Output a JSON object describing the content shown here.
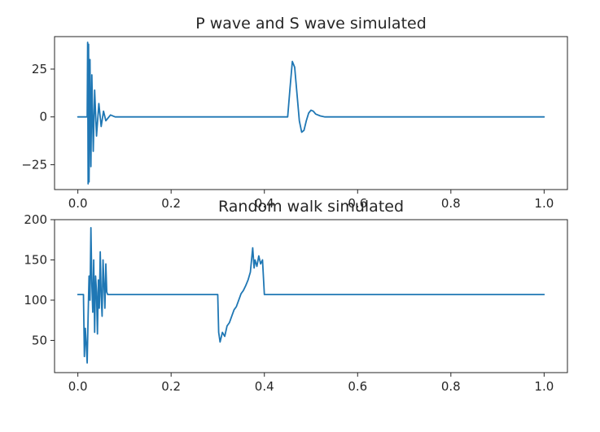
{
  "chart_data": [
    {
      "type": "line",
      "title": "P wave and S wave simulated",
      "xlim": [
        -0.05,
        1.05
      ],
      "ylim": [
        -38,
        42
      ],
      "xticks": [
        0.0,
        0.2,
        0.4,
        0.6,
        0.8,
        1.0
      ],
      "xtick_labels": [
        "0.0",
        "0.2",
        "0.4",
        "0.6",
        "0.8",
        "1.0"
      ],
      "yticks": [
        25,
        0,
        -25
      ],
      "ytick_labels": [
        "25",
        "0",
        "−25"
      ],
      "grid": false,
      "color": "#1f77b4",
      "series": [
        {
          "description_points": true,
          "x": [
            0.0,
            0.02,
            0.021,
            0.022,
            0.023,
            0.024,
            0.026,
            0.028,
            0.03,
            0.033,
            0.036,
            0.04,
            0.045,
            0.05,
            0.055,
            0.06,
            0.07,
            0.08,
            0.1,
            0.3,
            0.45,
            0.455,
            0.46,
            0.465,
            0.47,
            0.475,
            0.48,
            0.485,
            0.49,
            0.495,
            0.5,
            0.505,
            0.51,
            0.52,
            0.53,
            0.55,
            0.6,
            0.8,
            1.0
          ],
          "y": [
            0,
            0,
            39,
            -35,
            38,
            -34,
            30,
            -26,
            22,
            -18,
            14,
            -10,
            7,
            -5,
            3,
            -2,
            1,
            0,
            0,
            0,
            0,
            15,
            29,
            26,
            12,
            -2,
            -8,
            -7,
            -2,
            2,
            3.5,
            3,
            1.5,
            0.5,
            0,
            0,
            0,
            0,
            0
          ]
        }
      ]
    },
    {
      "type": "line",
      "title": "Random walk simulated",
      "xlim": [
        -0.05,
        1.05
      ],
      "ylim": [
        10,
        200
      ],
      "xticks": [
        0.0,
        0.2,
        0.4,
        0.6,
        0.8,
        1.0
      ],
      "xtick_labels": [
        "0.0",
        "0.2",
        "0.4",
        "0.6",
        "0.8",
        "1.0"
      ],
      "yticks": [
        200,
        150,
        100,
        50
      ],
      "ytick_labels": [
        "200",
        "150",
        "100",
        "50"
      ],
      "grid": false,
      "color": "#1f77b4",
      "series": [
        {
          "x": [
            0.0,
            0.012,
            0.014,
            0.016,
            0.018,
            0.02,
            0.022,
            0.024,
            0.026,
            0.028,
            0.03,
            0.032,
            0.034,
            0.036,
            0.038,
            0.04,
            0.042,
            0.044,
            0.046,
            0.048,
            0.05,
            0.052,
            0.054,
            0.056,
            0.058,
            0.06,
            0.062,
            0.064,
            0.3,
            0.302,
            0.305,
            0.31,
            0.315,
            0.32,
            0.325,
            0.33,
            0.335,
            0.34,
            0.345,
            0.35,
            0.355,
            0.36,
            0.365,
            0.37,
            0.375,
            0.378,
            0.38,
            0.384,
            0.388,
            0.392,
            0.396,
            0.4,
            0.402,
            0.5,
            0.7,
            1.0
          ],
          "y": [
            107,
            107,
            30,
            65,
            45,
            22,
            80,
            130,
            100,
            190,
            120,
            85,
            150,
            60,
            130,
            110,
            58,
            125,
            90,
            160,
            105,
            80,
            150,
            120,
            90,
            145,
            110,
            107,
            107,
            60,
            48,
            60,
            55,
            68,
            72,
            80,
            88,
            92,
            100,
            108,
            112,
            118,
            125,
            135,
            165,
            140,
            150,
            142,
            155,
            145,
            150,
            107,
            107,
            107,
            107,
            107
          ]
        }
      ]
    }
  ]
}
